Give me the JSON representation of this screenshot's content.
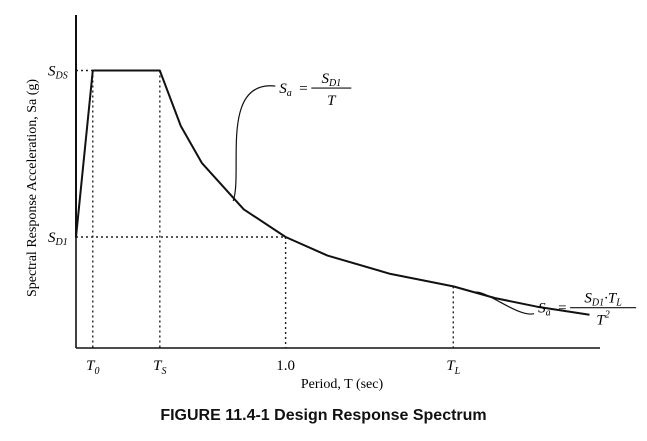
{
  "chart_data": {
    "type": "line",
    "title": "FIGURE 11.4-1 Design Response Spectrum",
    "xlabel": "Period, T (sec)",
    "ylabel": "Spectral Response Acceleration, Sa (g)",
    "x_ticks": [
      {
        "x": 0.08,
        "label": "T",
        "sub": "0"
      },
      {
        "x": 0.4,
        "label": "T",
        "sub": "S"
      },
      {
        "x": 1.0,
        "label": "1.0",
        "sub": ""
      },
      {
        "x": 1.8,
        "label": "T",
        "sub": "L"
      }
    ],
    "y_ticks": [
      {
        "y": 1.0,
        "label": "S",
        "sub": "DS"
      },
      {
        "y": 0.4,
        "label": "S",
        "sub": "D1"
      }
    ],
    "xlim": [
      0,
      2.5
    ],
    "ylim": [
      0,
      1.2
    ],
    "params": {
      "T0": 0.08,
      "TS": 0.4,
      "TL": 1.8,
      "SDS": 1.0,
      "SD1": 0.4
    },
    "series": [
      {
        "points": [
          [
            0.0,
            1.2
          ],
          [
            0.0,
            0.4
          ],
          [
            0.08,
            1.0
          ],
          [
            0.4,
            1.0
          ],
          [
            0.5,
            0.8
          ],
          [
            0.6,
            0.667
          ],
          [
            0.8,
            0.5
          ],
          [
            1.0,
            0.4
          ],
          [
            1.2,
            0.333
          ],
          [
            1.5,
            0.267
          ],
          [
            1.8,
            0.222
          ],
          [
            2.0,
            0.18
          ],
          [
            2.2,
            0.149
          ],
          [
            2.45,
            0.12
          ]
        ]
      }
    ],
    "annotations": [
      {
        "name": "eq1",
        "lhs": "S",
        "lhs_sub": "a",
        "num": "S",
        "num_sub": "D1",
        "den": "T",
        "at": [
          0.97,
          0.98
        ]
      },
      {
        "name": "eq2",
        "lhs": "S",
        "lhs_sub": "a",
        "num": "S",
        "num_sub": "D1",
        "num_tail": "·T",
        "num_tail_sub": "L",
        "den": "T",
        "den_sup": "2",
        "at": [
          2.3,
          0.52
        ]
      }
    ]
  }
}
